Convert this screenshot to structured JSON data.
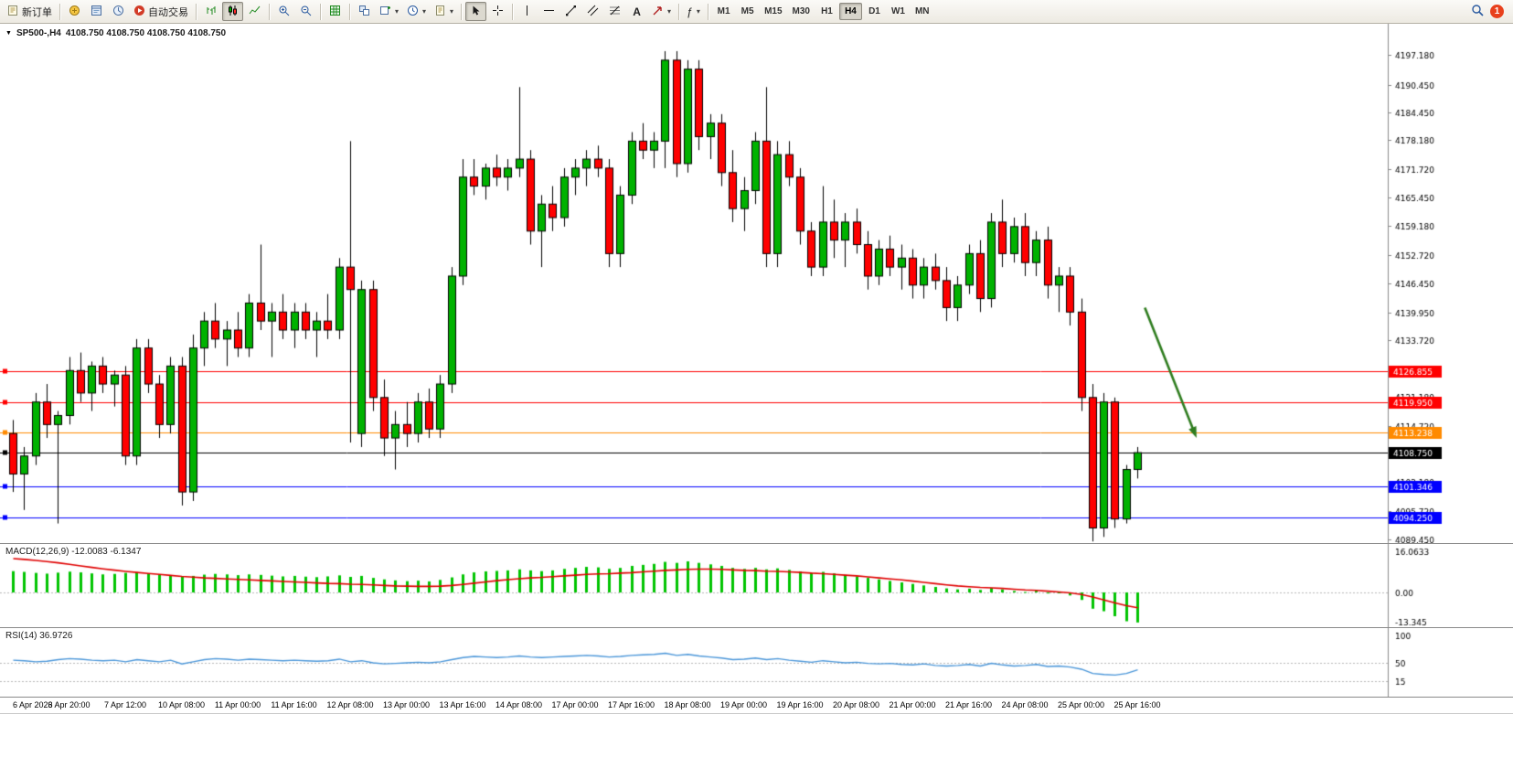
{
  "toolbar": {
    "new_order_label": "新订单",
    "autotrading_label": "自动交易",
    "text_tool_label": "A",
    "indicators_glyph": "ƒ",
    "timeframes": [
      "M1",
      "M5",
      "M15",
      "M30",
      "H1",
      "H4",
      "D1",
      "W1",
      "MN"
    ],
    "active_timeframe": "H4",
    "notification_count": "1"
  },
  "chart": {
    "title_symbol": "SP500-,H4",
    "title_ohlc": "4108.750 4108.750 4108.750 4108.750"
  },
  "chart_data": {
    "type": "candlestick",
    "symbol": "SP500-",
    "period": "H4",
    "ohlc_display": [
      "4108.750",
      "4108.750",
      "4108.750",
      "4108.750"
    ],
    "colors": {
      "up": "#00B200",
      "down": "#FF0000",
      "outline": "#000000",
      "macd_histogram": "#00C400",
      "macd_signal": "#E00000",
      "rsi_line": "#4A96D9",
      "arrow": "#2F7D1F",
      "axis_text": "#000000"
    },
    "candles": [
      [
        4113,
        4116,
        4100,
        4104
      ],
      [
        4104,
        4110,
        4096,
        4108
      ],
      [
        4108,
        4122,
        4106,
        4120
      ],
      [
        4120,
        4124,
        4112,
        4115
      ],
      [
        4115,
        4118,
        4093,
        4117
      ],
      [
        4117,
        4130,
        4115,
        4127
      ],
      [
        4127,
        4131,
        4120,
        4122
      ],
      [
        4122,
        4129,
        4118,
        4128
      ],
      [
        4128,
        4130,
        4122,
        4124
      ],
      [
        4124,
        4127,
        4119,
        4126
      ],
      [
        4126,
        4128,
        4106,
        4108
      ],
      [
        4108,
        4134,
        4106,
        4132
      ],
      [
        4132,
        4134,
        4122,
        4124
      ],
      [
        4124,
        4126,
        4112,
        4115
      ],
      [
        4115,
        4130,
        4113,
        4128
      ],
      [
        4128,
        4130,
        4097,
        4100
      ],
      [
        4100,
        4135,
        4098,
        4132
      ],
      [
        4132,
        4140,
        4128,
        4138
      ],
      [
        4138,
        4142,
        4132,
        4134
      ],
      [
        4134,
        4138,
        4128,
        4136
      ],
      [
        4136,
        4140,
        4130,
        4132
      ],
      [
        4132,
        4144,
        4130,
        4142
      ],
      [
        4142,
        4155,
        4136,
        4138
      ],
      [
        4138,
        4142,
        4130,
        4140
      ],
      [
        4140,
        4144,
        4134,
        4136
      ],
      [
        4136,
        4142,
        4132,
        4140
      ],
      [
        4140,
        4142,
        4134,
        4136
      ],
      [
        4136,
        4140,
        4130,
        4138
      ],
      [
        4138,
        4144,
        4134,
        4136
      ],
      [
        4136,
        4152,
        4134,
        4150
      ],
      [
        4150,
        4178,
        4111,
        4145
      ],
      [
        4113,
        4147,
        4110,
        4145
      ],
      [
        4145,
        4147,
        4118,
        4121
      ],
      [
        4121,
        4125,
        4108,
        4112
      ],
      [
        4112,
        4118,
        4105,
        4115
      ],
      [
        4115,
        4120,
        4110,
        4113
      ],
      [
        4113,
        4122,
        4111,
        4120
      ],
      [
        4120,
        4123,
        4112,
        4114
      ],
      [
        4114,
        4126,
        4112,
        4124
      ],
      [
        4124,
        4150,
        4122,
        4148
      ],
      [
        4148,
        4174,
        4146,
        4170
      ],
      [
        4170,
        4174,
        4166,
        4168
      ],
      [
        4168,
        4173,
        4165,
        4172
      ],
      [
        4172,
        4175,
        4168,
        4170
      ],
      [
        4170,
        4174,
        4167,
        4172
      ],
      [
        4172,
        4190,
        4170,
        4174
      ],
      [
        4174,
        4176,
        4155,
        4158
      ],
      [
        4158,
        4166,
        4150,
        4164
      ],
      [
        4164,
        4168,
        4158,
        4161
      ],
      [
        4161,
        4172,
        4159,
        4170
      ],
      [
        4170,
        4174,
        4166,
        4172
      ],
      [
        4172,
        4176,
        4168,
        4174
      ],
      [
        4174,
        4177,
        4170,
        4172
      ],
      [
        4172,
        4174,
        4150,
        4153
      ],
      [
        4153,
        4168,
        4150,
        4166
      ],
      [
        4166,
        4180,
        4164,
        4178
      ],
      [
        4178,
        4182,
        4174,
        4176
      ],
      [
        4176,
        4180,
        4172,
        4178
      ],
      [
        4178,
        4198,
        4172,
        4196
      ],
      [
        4196,
        4198,
        4170,
        4173
      ],
      [
        4173,
        4196,
        4171,
        4194
      ],
      [
        4194,
        4196,
        4176,
        4179
      ],
      [
        4179,
        4184,
        4174,
        4182
      ],
      [
        4182,
        4184,
        4168,
        4171
      ],
      [
        4171,
        4176,
        4160,
        4163
      ],
      [
        4163,
        4170,
        4158,
        4167
      ],
      [
        4167,
        4180,
        4164,
        4178
      ],
      [
        4178,
        4190,
        4150,
        4153
      ],
      [
        4153,
        4178,
        4150,
        4175
      ],
      [
        4175,
        4178,
        4168,
        4170
      ],
      [
        4170,
        4172,
        4155,
        4158
      ],
      [
        4158,
        4160,
        4148,
        4150
      ],
      [
        4150,
        4168,
        4148,
        4160
      ],
      [
        4160,
        4165,
        4152,
        4156
      ],
      [
        4156,
        4162,
        4150,
        4160
      ],
      [
        4160,
        4163,
        4153,
        4155
      ],
      [
        4155,
        4158,
        4145,
        4148
      ],
      [
        4148,
        4156,
        4146,
        4154
      ],
      [
        4154,
        4157,
        4148,
        4150
      ],
      [
        4150,
        4155,
        4145,
        4152
      ],
      [
        4152,
        4154,
        4143,
        4146
      ],
      [
        4146,
        4152,
        4143,
        4150
      ],
      [
        4150,
        4153,
        4145,
        4147
      ],
      [
        4147,
        4150,
        4138,
        4141
      ],
      [
        4141,
        4148,
        4138,
        4146
      ],
      [
        4146,
        4155,
        4144,
        4153
      ],
      [
        4153,
        4156,
        4140,
        4143
      ],
      [
        4143,
        4162,
        4141,
        4160
      ],
      [
        4160,
        4165,
        4150,
        4153
      ],
      [
        4153,
        4161,
        4151,
        4159
      ],
      [
        4159,
        4162,
        4148,
        4151
      ],
      [
        4151,
        4158,
        4148,
        4156
      ],
      [
        4156,
        4159,
        4143,
        4146
      ],
      [
        4146,
        4150,
        4140,
        4148
      ],
      [
        4148,
        4150,
        4137,
        4140
      ],
      [
        4140,
        4143,
        4118,
        4121
      ],
      [
        4121,
        4124,
        4089,
        4092
      ],
      [
        4092,
        4122,
        4090,
        4120
      ],
      [
        4120,
        4121,
        4092,
        4094
      ],
      [
        4094,
        4106,
        4093,
        4105
      ],
      [
        4105,
        4110,
        4103,
        4108.75
      ]
    ],
    "axis_ticks": [
      "4197.180",
      "4190.450",
      "4184.450",
      "4178.180",
      "4171.720",
      "4165.450",
      "4159.180",
      "4152.720",
      "4146.450",
      "4139.950",
      "4133.720",
      "4127.450",
      "4121.180",
      "4114.720",
      "4108.450",
      "4102.180",
      "4095.720",
      "4089.450"
    ],
    "horizontal_lines": [
      {
        "price": 4126.855,
        "label": "4126.855",
        "color": "#FF0000"
      },
      {
        "price": 4119.95,
        "label": "4119.950",
        "color": "#FF0000"
      },
      {
        "price": 4113.238,
        "label": "4113.238",
        "color": "#FF8A00"
      },
      {
        "price": 4108.75,
        "label": "4108.750",
        "color": "#000000"
      },
      {
        "price": 4101.346,
        "label": "4101.346",
        "color": "#0000FF"
      },
      {
        "price": 4094.25,
        "label": "4094.250",
        "color": "#0000FF"
      }
    ],
    "arrow_annotation": {
      "from_bar": 101,
      "from_price": 4141,
      "to_bar": 105.6,
      "to_price": 4112
    },
    "time_axis": [
      {
        "text": "6 Apr 2023",
        "bar": 0
      },
      {
        "text": "6 Apr 20:00",
        "bar": 5
      },
      {
        "text": "7 Apr 12:00",
        "bar": 10
      },
      {
        "text": "10 Apr 08:00",
        "bar": 15
      },
      {
        "text": "11 Apr 00:00",
        "bar": 20
      },
      {
        "text": "11 Apr 16:00",
        "bar": 25
      },
      {
        "text": "12 Apr 08:00",
        "bar": 30
      },
      {
        "text": "13 Apr 00:00",
        "bar": 35
      },
      {
        "text": "13 Apr 16:00",
        "bar": 40
      },
      {
        "text": "14 Apr 08:00",
        "bar": 45
      },
      {
        "text": "17 Apr 00:00",
        "bar": 50
      },
      {
        "text": "17 Apr 16:00",
        "bar": 55
      },
      {
        "text": "18 Apr 08:00",
        "bar": 60
      },
      {
        "text": "19 Apr 00:00",
        "bar": 65
      },
      {
        "text": "19 Apr 16:00",
        "bar": 70
      },
      {
        "text": "20 Apr 08:00",
        "bar": 75
      },
      {
        "text": "21 Apr 00:00",
        "bar": 80
      },
      {
        "text": "21 Apr 16:00",
        "bar": 85
      },
      {
        "text": "24 Apr 08:00",
        "bar": 90
      },
      {
        "text": "25 Apr 00:00",
        "bar": 95
      },
      {
        "text": "25 Apr 16:00",
        "bar": 100
      }
    ],
    "macd": {
      "label_text": "MACD(12,26,9) -12.0083 -6.1347",
      "params": "12,26,9",
      "main_value": -12.0083,
      "signal_value": -6.1347,
      "axis_ticks": [
        "16.0633",
        "0.00",
        "-13.345"
      ],
      "histogram": [
        8.5,
        8.2,
        7.8,
        7.5,
        7.9,
        8.3,
        8.0,
        7.6,
        7.2,
        7.4,
        7.8,
        8.1,
        7.5,
        7.0,
        6.8,
        6.2,
        6.6,
        7.1,
        7.4,
        7.2,
        6.9,
        7.2,
        7.0,
        6.7,
        6.4,
        6.6,
        6.3,
        6.1,
        6.4,
        6.8,
        6.2,
        6.6,
        5.8,
        5.2,
        4.8,
        4.5,
        4.7,
        4.4,
        5.0,
        6.0,
        7.2,
        8.0,
        8.4,
        8.6,
        8.8,
        9.2,
        8.8,
        8.5,
        8.8,
        9.4,
        9.8,
        10.2,
        10.0,
        9.4,
        9.8,
        10.6,
        11.0,
        11.4,
        12.2,
        11.8,
        12.4,
        11.8,
        11.2,
        10.6,
        9.8,
        9.4,
        9.8,
        9.2,
        9.6,
        9.0,
        8.4,
        7.8,
        8.2,
        7.6,
        7.0,
        6.4,
        5.8,
        5.2,
        4.6,
        4.0,
        3.4,
        2.8,
        2.2,
        1.6,
        1.2,
        1.5,
        1.0,
        1.8,
        1.2,
        0.6,
        0.2,
        0.8,
        -0.4,
        -0.2,
        -1.2,
        -3.0,
        -6.5,
        -7.5,
        -9.5,
        -11.5,
        -12.0
      ],
      "signal": [
        13.5,
        13.2,
        12.8,
        12.3,
        11.8,
        11.2,
        10.6,
        10.0,
        9.4,
        8.9,
        8.4,
        8.0,
        7.6,
        7.2,
        6.8,
        6.4,
        6.1,
        5.8,
        5.6,
        5.4,
        5.2,
        5.0,
        4.8,
        4.6,
        4.4,
        4.2,
        4.0,
        3.8,
        3.6,
        3.5,
        3.3,
        3.2,
        3.0,
        2.8,
        2.6,
        2.5,
        2.4,
        2.4,
        2.5,
        2.8,
        3.2,
        3.7,
        4.2,
        4.7,
        5.1,
        5.5,
        5.8,
        6.0,
        6.3,
        6.6,
        6.9,
        7.2,
        7.4,
        7.5,
        7.7,
        7.9,
        8.2,
        8.5,
        8.8,
        9.0,
        9.2,
        9.3,
        9.3,
        9.2,
        9.0,
        8.8,
        8.7,
        8.5,
        8.4,
        8.2,
        8.0,
        7.7,
        7.5,
        7.2,
        6.9,
        6.6,
        6.2,
        5.8,
        5.4,
        5.0,
        4.5,
        4.0,
        3.5,
        3.0,
        2.6,
        2.3,
        2.0,
        1.8,
        1.6,
        1.3,
        1.0,
        0.8,
        0.5,
        0.2,
        -0.2,
        -0.8,
        -1.8,
        -3.0,
        -4.2,
        -5.3,
        -6.1
      ]
    },
    "rsi": {
      "label_text": "RSI(14) 36.9726",
      "period": 14,
      "value": 36.9726,
      "axis_ticks": [
        "100",
        "50",
        "15"
      ],
      "values": [
        55,
        54,
        52,
        53,
        56,
        58,
        57,
        55,
        54,
        55,
        52,
        56,
        54,
        52,
        55,
        48,
        52,
        56,
        58,
        57,
        55,
        57,
        56,
        55,
        54,
        55,
        54,
        53,
        54,
        57,
        52,
        54,
        50,
        48,
        49,
        50,
        51,
        50,
        52,
        56,
        60,
        62,
        61,
        60,
        61,
        63,
        61,
        60,
        61,
        62,
        63,
        64,
        63,
        61,
        62,
        64,
        65,
        66,
        68,
        64,
        66,
        63,
        61,
        59,
        56,
        57,
        59,
        56,
        58,
        55,
        53,
        51,
        54,
        52,
        50,
        51,
        49,
        48,
        49,
        47,
        46,
        48,
        45,
        44,
        45,
        47,
        44,
        49,
        46,
        44,
        45,
        47,
        43,
        44,
        42,
        38,
        30,
        28,
        27,
        30,
        36.97
      ]
    }
  }
}
